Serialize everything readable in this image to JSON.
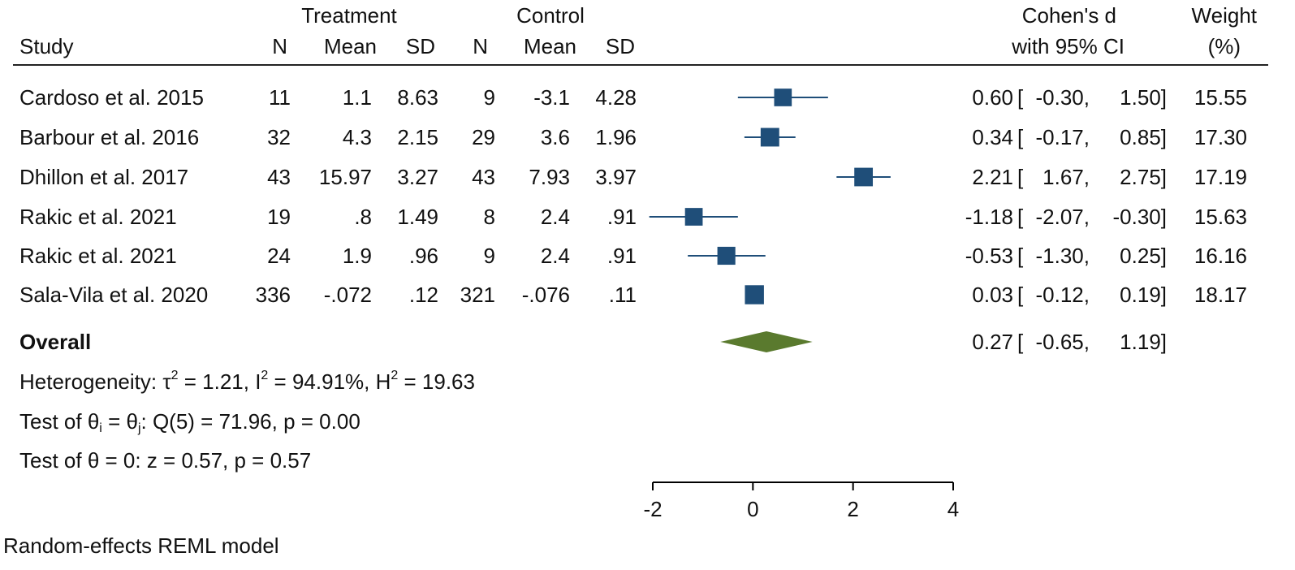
{
  "header": {
    "treatment": "Treatment",
    "control": "Control",
    "study": "Study",
    "n": "N",
    "mean": "Mean",
    "sd": "SD",
    "effect_line1": "Cohen's d",
    "effect_line2": "with 95% CI",
    "weight_line1": "Weight",
    "weight_line2": "(%)"
  },
  "rows": [
    {
      "study": "Cardoso et al. 2015",
      "t_n": "11",
      "t_mean": "1.1",
      "t_sd": "8.63",
      "c_n": "9",
      "c_mean": "-3.1",
      "c_sd": "4.28",
      "d": "0.60",
      "lo": "-0.30,",
      "hi": "1.50]",
      "weight": "15.55"
    },
    {
      "study": "Barbour et al. 2016",
      "t_n": "32",
      "t_mean": "4.3",
      "t_sd": "2.15",
      "c_n": "29",
      "c_mean": "3.6",
      "c_sd": "1.96",
      "d": "0.34",
      "lo": "-0.17,",
      "hi": "0.85]",
      "weight": "17.30"
    },
    {
      "study": "Dhillon et al. 2017",
      "t_n": "43",
      "t_mean": "15.97",
      "t_sd": "3.27",
      "c_n": "43",
      "c_mean": "7.93",
      "c_sd": "3.97",
      "d": "2.21",
      "lo": "1.67,",
      "hi": "2.75]",
      "weight": "17.19"
    },
    {
      "study": "Rakic et al. 2021",
      "t_n": "19",
      "t_mean": ".8",
      "t_sd": "1.49",
      "c_n": "8",
      "c_mean": "2.4",
      "c_sd": ".91",
      "d": "-1.18",
      "lo": "-2.07,",
      "hi": "-0.30]",
      "weight": "15.63"
    },
    {
      "study": "Rakic et al. 2021",
      "t_n": "24",
      "t_mean": "1.9",
      "t_sd": ".96",
      "c_n": "9",
      "c_mean": "2.4",
      "c_sd": ".91",
      "d": "-0.53",
      "lo": "-1.30,",
      "hi": "0.25]",
      "weight": "16.16"
    },
    {
      "study": "Sala-Vila et al. 2020",
      "t_n": "336",
      "t_mean": "-.072",
      "t_sd": ".12",
      "c_n": "321",
      "c_mean": "-.076",
      "c_sd": ".11",
      "d": "0.03",
      "lo": "-0.12,",
      "hi": "0.19]",
      "weight": "18.17"
    }
  ],
  "overall": {
    "label": "Overall",
    "d": "0.27",
    "lo": "-0.65,",
    "hi": "1.19]"
  },
  "ci_bracket": "[",
  "stats": {
    "het_prefix": "Heterogeneity: τ",
    "het_tau_sup": "2",
    "het_mid1": " = 1.21, I",
    "het_i_sup": "2",
    "het_mid2": " = 94.91%, H",
    "het_h_sup": "2",
    "het_end": " = 19.63",
    "q_prefix": "Test of θ",
    "q_sub_i": "i",
    "q_eq": " = θ",
    "q_sub_j": "j",
    "q_rest": ": Q(5) = 71.96, p = 0.00",
    "z_test": "Test of θ = 0: z = 0.57, p = 0.57"
  },
  "footnote": "Random-effects REML model",
  "chart_data": {
    "type": "forest",
    "xlim": [
      -2,
      4
    ],
    "ticks": [
      -2,
      0,
      2,
      4
    ],
    "tick_labels": [
      "-2",
      "0",
      "2",
      "4"
    ],
    "null_line": 0,
    "colors": {
      "marker": "#1f4e79",
      "overall": "#5a7a2e",
      "axis": "#000000"
    },
    "studies": [
      {
        "name": "Cardoso et al. 2015",
        "d": 0.6,
        "lo": -0.3,
        "hi": 1.5,
        "weight": 15.55
      },
      {
        "name": "Barbour et al. 2016",
        "d": 0.34,
        "lo": -0.17,
        "hi": 0.85,
        "weight": 17.3
      },
      {
        "name": "Dhillon et al. 2017",
        "d": 2.21,
        "lo": 1.67,
        "hi": 2.75,
        "weight": 17.19
      },
      {
        "name": "Rakic et al. 2021",
        "d": -1.18,
        "lo": -2.07,
        "hi": -0.3,
        "weight": 15.63
      },
      {
        "name": "Rakic et al. 2021",
        "d": -0.53,
        "lo": -1.3,
        "hi": 0.25,
        "weight": 16.16
      },
      {
        "name": "Sala-Vila et al. 2020",
        "d": 0.03,
        "lo": -0.12,
        "hi": 0.19,
        "weight": 18.17
      }
    ],
    "overall": {
      "d": 0.27,
      "lo": -0.65,
      "hi": 1.19
    }
  }
}
